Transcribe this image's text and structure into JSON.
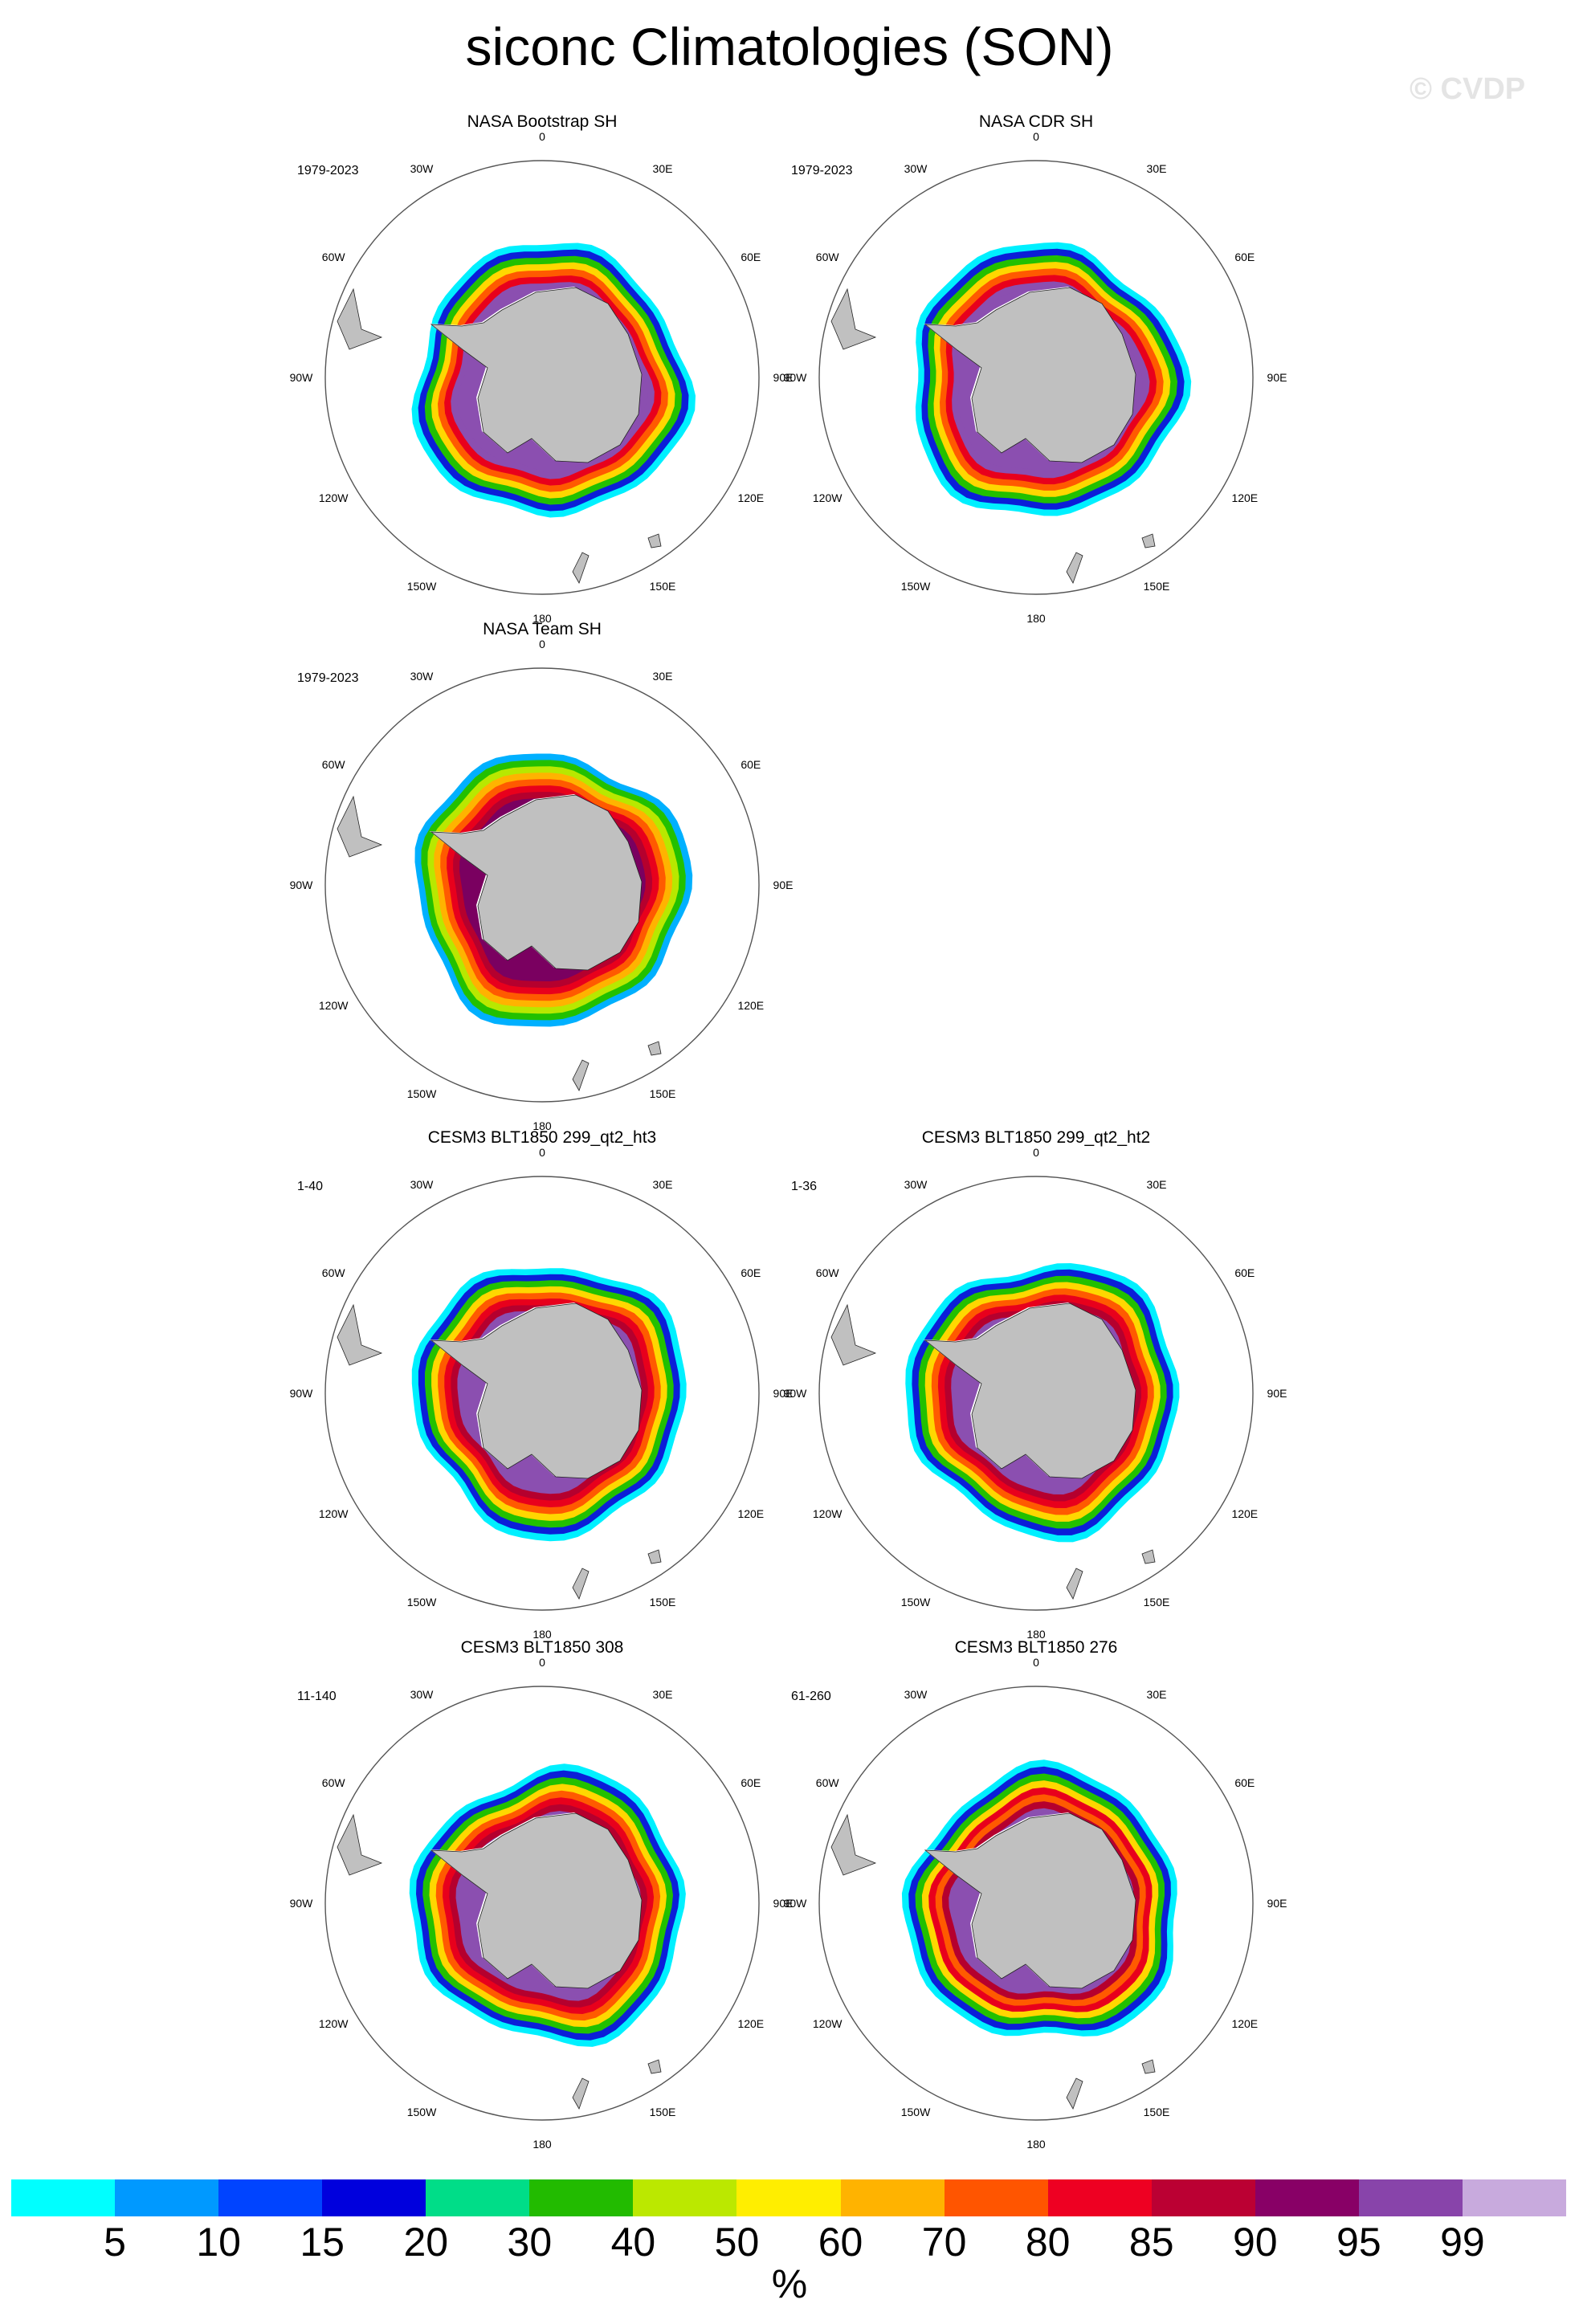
{
  "title": "siconc Climatologies (SON)",
  "watermark": "© CVDP",
  "lon_labels": [
    "0",
    "30E",
    "60E",
    "90E",
    "120E",
    "150E",
    "180",
    "150W",
    "120W",
    "90W",
    "60W",
    "30W"
  ],
  "panels": [
    {
      "id": "p1",
      "title": "NASA Bootstrap SH",
      "period": "1979-2023",
      "fill": [
        "#8b4fb0",
        "#8b4fb0",
        "#e8001c",
        "#ff5a00",
        "#ffd700",
        "#22c000",
        "#0b1ed8",
        "#00f0ff"
      ]
    },
    {
      "id": "p2",
      "title": "NASA CDR SH",
      "period": "1979-2023",
      "fill": [
        "#8b4fb0",
        "#8b4fb0",
        "#e8001c",
        "#ff5a00",
        "#ffd700",
        "#22c000",
        "#0b1ed8",
        "#00f0ff"
      ]
    },
    {
      "id": "p3",
      "title": "NASA Team SH",
      "period": "1979-2023",
      "fill": [
        "#7a0060",
        "#b5002e",
        "#e8001c",
        "#ff5a00",
        "#ffb300",
        "#b8e800",
        "#22c000",
        "#00b0ff"
      ]
    },
    {
      "id": "p4",
      "title": "CESM3 BLT1850 299_qt2_ht3",
      "period": "1-40",
      "fill": [
        "#8b4fb0",
        "#b5002e",
        "#e8001c",
        "#ff5a00",
        "#ffd700",
        "#22c000",
        "#0b1ed8",
        "#00f0ff"
      ]
    },
    {
      "id": "p5",
      "title": "CESM3 BLT1850 299_qt2_ht2",
      "period": "1-36",
      "fill": [
        "#8b4fb0",
        "#b5002e",
        "#e8001c",
        "#ff5a00",
        "#ffd700",
        "#22c000",
        "#0b1ed8",
        "#00f0ff"
      ]
    },
    {
      "id": "p6",
      "title": "CESM3 BLT1850 308",
      "period": "11-140",
      "fill": [
        "#8b4fb0",
        "#b5002e",
        "#e8001c",
        "#ff5a00",
        "#ffd700",
        "#22c000",
        "#0b1ed8",
        "#00f0ff"
      ]
    },
    {
      "id": "p7",
      "title": "CESM3 BLT1850 276",
      "period": "61-260",
      "fill": [
        "#8b4fb0",
        "#b5002e",
        "#ff5a00",
        "#e8001c",
        "#ffd700",
        "#22c000",
        "#0b1ed8",
        "#00f0ff"
      ]
    }
  ],
  "colorbar": {
    "colors": [
      "#00ffff",
      "#0099ff",
      "#0044ff",
      "#0000dd",
      "#00dd88",
      "#22bb00",
      "#bbe800",
      "#ffee00",
      "#ffb300",
      "#ff5500",
      "#ee0022",
      "#bb0033",
      "#880066",
      "#8844aa",
      "#c8aadd"
    ],
    "ticks": [
      "5",
      "10",
      "15",
      "20",
      "30",
      "40",
      "50",
      "60",
      "70",
      "80",
      "85",
      "90",
      "95",
      "99"
    ],
    "units": "%"
  },
  "land_color": "#c0c0c0"
}
